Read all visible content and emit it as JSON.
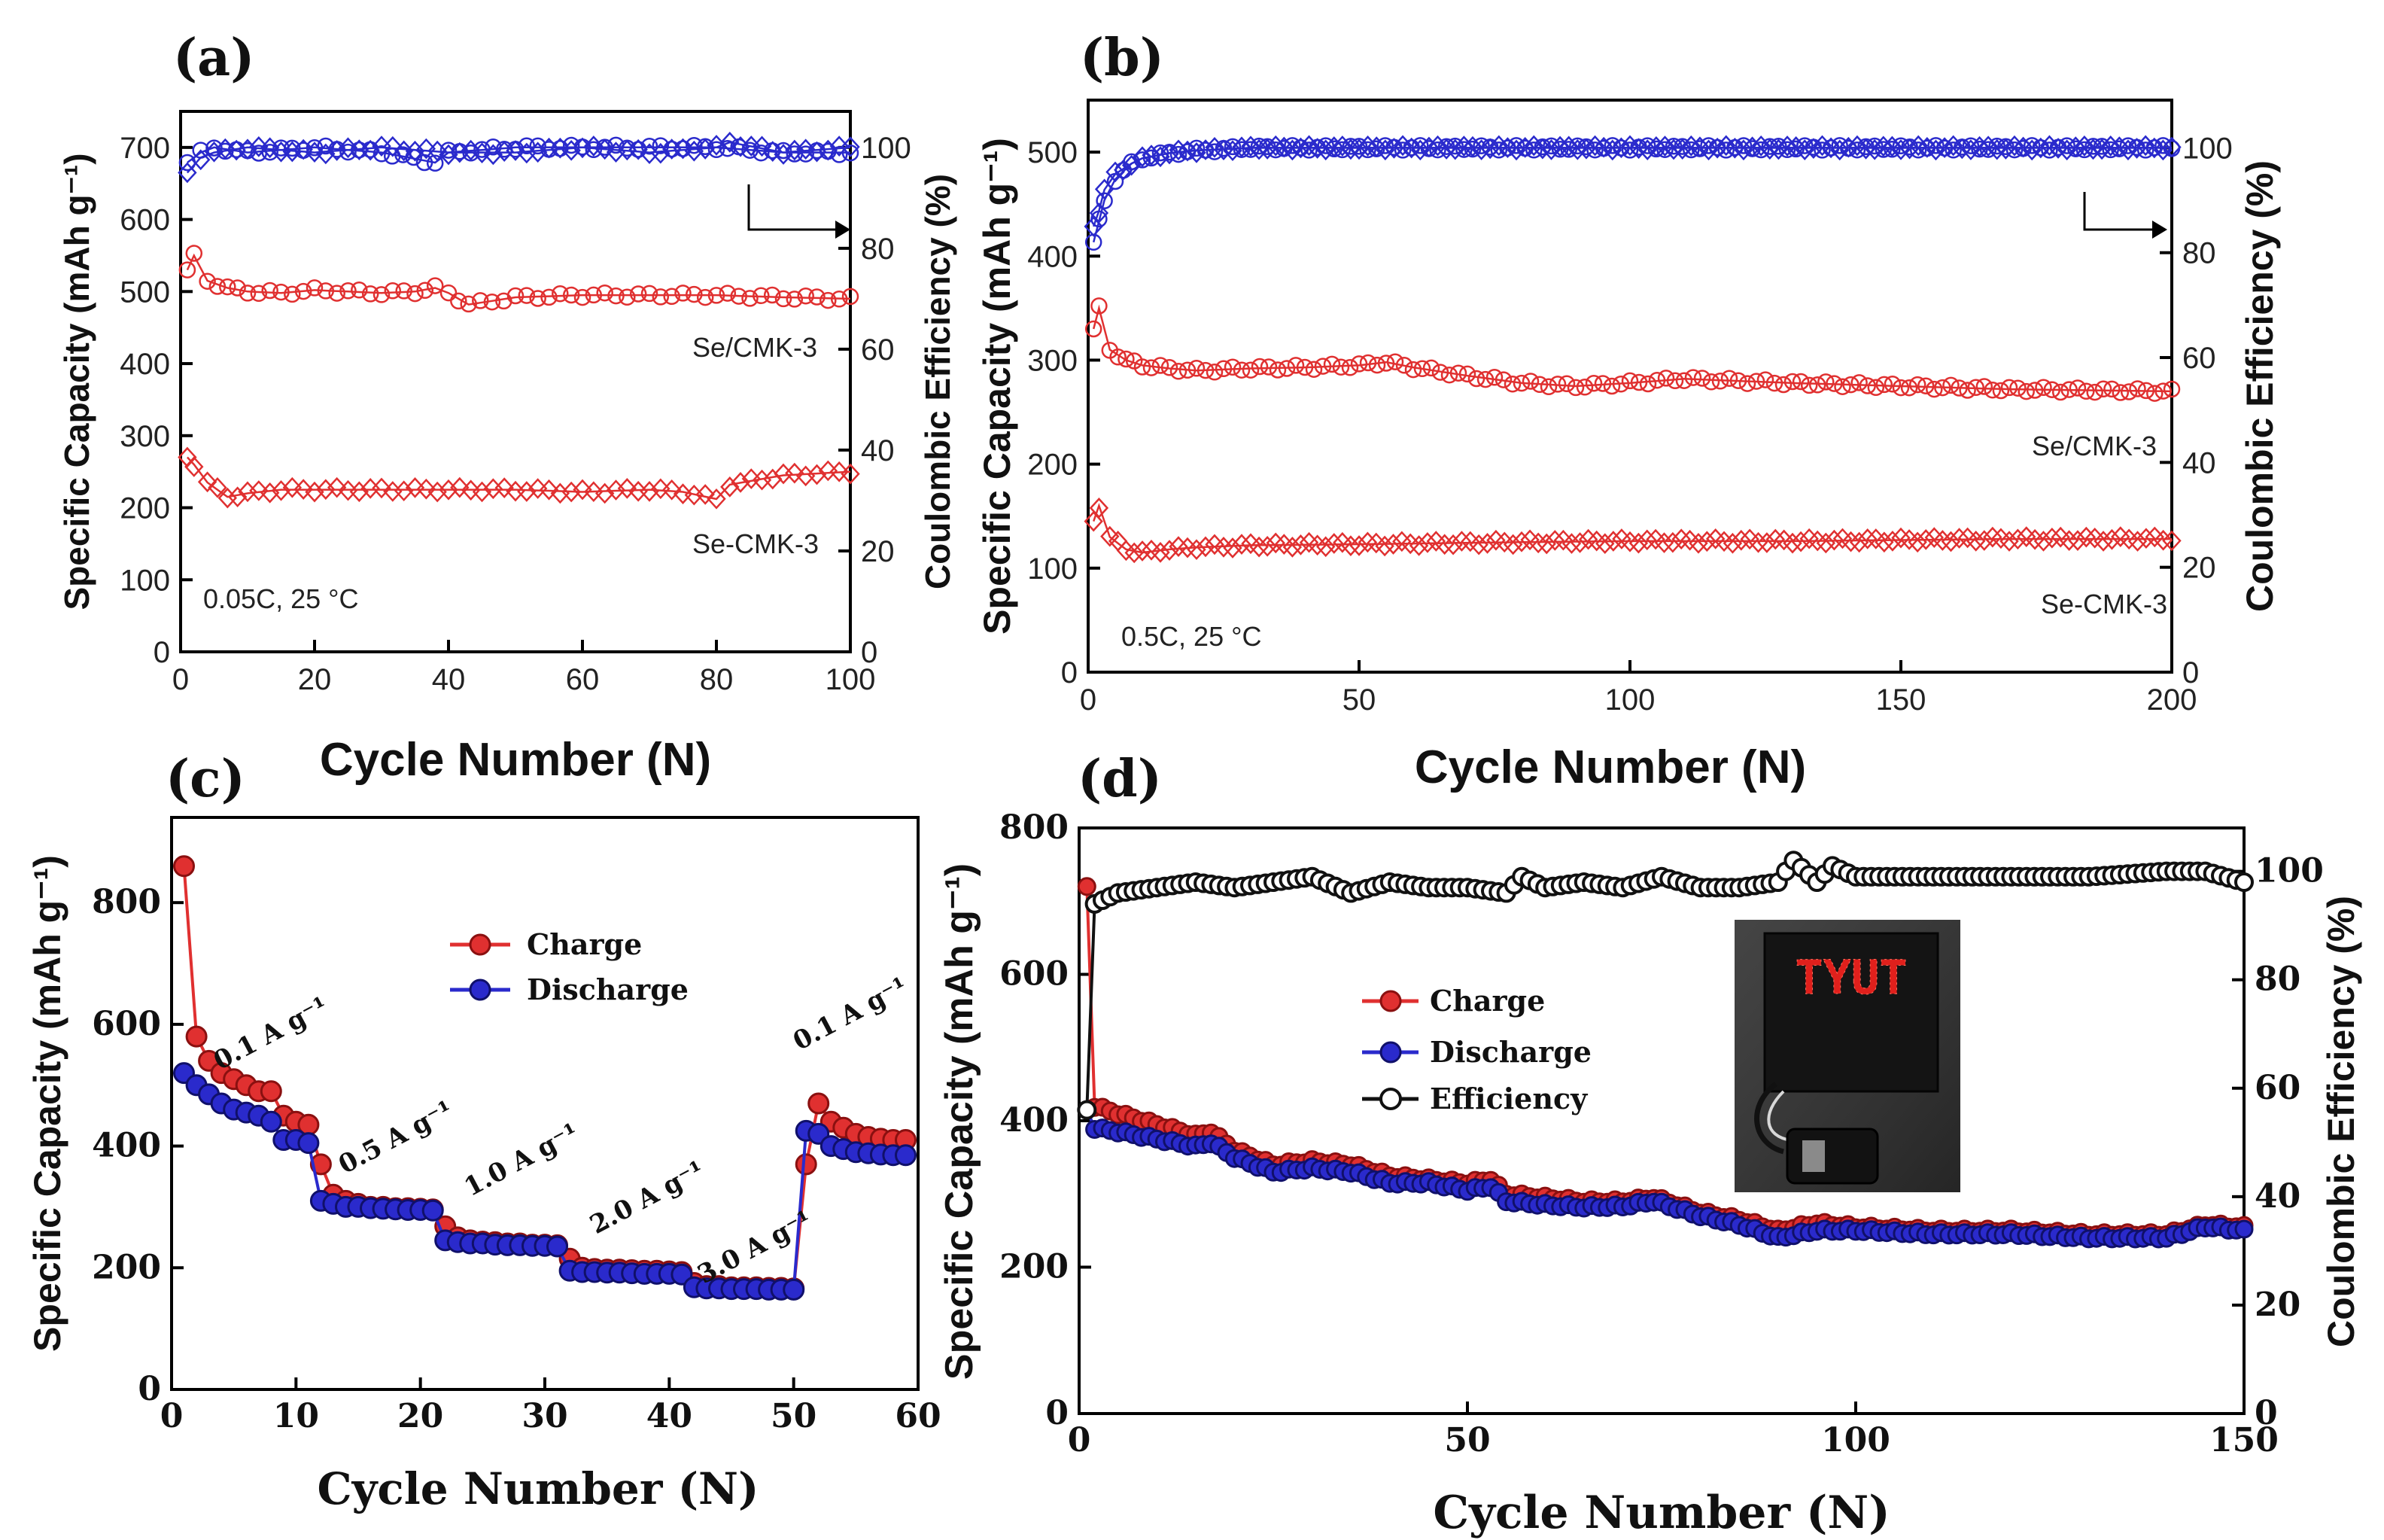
{
  "chart_data": [
    {
      "id": "a",
      "panel_label": "(a)",
      "type": "scatter",
      "xlabel": "Cycle Number (N)",
      "ylabel": "Specific Capacity (mAh g⁻¹)",
      "ylabel2": "Coulombic Efficiency (%)",
      "xlim": [
        0,
        100
      ],
      "ylim": [
        0,
        750
      ],
      "y2lim": [
        0,
        107.14
      ],
      "x_ticks": [
        0,
        20,
        40,
        60,
        80,
        100
      ],
      "y_ticks": [
        0,
        100,
        200,
        300,
        400,
        500,
        600,
        700
      ],
      "y2_ticks": [
        0,
        20,
        40,
        60,
        80,
        100
      ],
      "condition": "0.05C, 25 °C",
      "labels": [
        "Se/CMK-3",
        "Se-CMK-3"
      ],
      "series": [
        {
          "name": "Se/CMK-3 capacity",
          "axis": "left",
          "color": "#e03030",
          "x": [
            1,
            2,
            4,
            7,
            10,
            15,
            20,
            25,
            30,
            35,
            38,
            40,
            43,
            50,
            60,
            70,
            80,
            90,
            100
          ],
          "values": [
            530,
            550,
            515,
            505,
            500,
            498,
            502,
            500,
            498,
            500,
            505,
            498,
            482,
            492,
            495,
            495,
            495,
            492,
            490
          ]
        },
        {
          "name": "Se-CMK-3 capacity",
          "axis": "left",
          "color": "#e03030",
          "x": [
            1,
            2,
            4,
            7,
            10,
            15,
            20,
            30,
            40,
            50,
            60,
            70,
            75,
            80,
            82,
            90,
            100
          ],
          "values": [
            270,
            260,
            235,
            215,
            220,
            225,
            225,
            225,
            225,
            225,
            222,
            225,
            222,
            212,
            232,
            245,
            250
          ]
        },
        {
          "name": "Se/CMK-3 efficiency",
          "axis": "right",
          "color": "#2a2acc",
          "x": [
            1,
            3,
            5,
            10,
            20,
            30,
            38,
            40,
            50,
            60,
            70,
            80,
            90,
            100
          ],
          "values": [
            97,
            99,
            100,
            99,
            100,
            99,
            97,
            99,
            100,
            100,
            100,
            100,
            99,
            99
          ]
        },
        {
          "name": "Se-CMK-3 efficiency",
          "axis": "right",
          "color": "#2a2acc",
          "x": [
            1,
            3,
            5,
            10,
            20,
            30,
            40,
            50,
            60,
            70,
            80,
            82,
            90,
            100
          ],
          "values": [
            95,
            98,
            99,
            100,
            99,
            100,
            99,
            99,
            100,
            99,
            100,
            101,
            99,
            100
          ]
        }
      ]
    },
    {
      "id": "b",
      "panel_label": "(b)",
      "type": "scatter",
      "xlabel": "Cycle Number (N)",
      "ylabel": "Specific Capacity (mAh g⁻¹)",
      "ylabel2": "Coulombic Efficiency (%)",
      "xlim": [
        0,
        200
      ],
      "ylim": [
        0,
        550
      ],
      "y2lim": [
        0,
        109.1
      ],
      "x_ticks": [
        0,
        50,
        100,
        150,
        200
      ],
      "y_ticks": [
        0,
        100,
        200,
        300,
        400,
        500
      ],
      "y2_ticks": [
        0,
        20,
        40,
        60,
        80,
        100
      ],
      "condition": "0.5C, 25 °C",
      "labels": [
        "Se/CMK-3",
        "Se-CMK-3"
      ],
      "series": [
        {
          "name": "Se/CMK-3 capacity",
          "axis": "left",
          "color": "#e03030",
          "x": [
            1,
            2,
            4,
            7,
            10,
            15,
            20,
            30,
            40,
            50,
            55,
            60,
            70,
            80,
            90,
            100,
            110,
            120,
            130,
            150,
            170,
            200
          ],
          "values": [
            330,
            350,
            310,
            300,
            295,
            292,
            290,
            292,
            293,
            295,
            298,
            293,
            285,
            278,
            275,
            278,
            282,
            280,
            278,
            275,
            272,
            270
          ]
        },
        {
          "name": "Se-CMK-3 capacity",
          "axis": "left",
          "color": "#e03030",
          "x": [
            1,
            2,
            4,
            7,
            10,
            15,
            20,
            30,
            50,
            80,
            100,
            130,
            150,
            170,
            200
          ],
          "values": [
            145,
            160,
            130,
            118,
            115,
            118,
            120,
            122,
            123,
            125,
            126,
            126,
            127,
            128,
            128
          ]
        },
        {
          "name": "Se/CMK-3 efficiency",
          "axis": "right",
          "color": "#2a2acc",
          "x": [
            1,
            2,
            3,
            5,
            8,
            10,
            15,
            20,
            30,
            50,
            100,
            150,
            200
          ],
          "values": [
            82,
            86,
            90,
            94,
            97,
            98,
            99,
            99.5,
            100,
            100,
            100,
            100,
            100
          ]
        },
        {
          "name": "Se-CMK-3 efficiency",
          "axis": "right",
          "color": "#2a2acc",
          "x": [
            1,
            2,
            3,
            5,
            8,
            10,
            15,
            20,
            30,
            50,
            100,
            150,
            200
          ],
          "values": [
            85,
            88,
            92,
            95,
            97,
            98,
            99,
            99.5,
            100,
            100,
            100,
            100,
            100
          ]
        }
      ]
    },
    {
      "id": "c",
      "panel_label": "(c)",
      "type": "line",
      "xlabel": "Cycle Number (N)",
      "ylabel": "Specific Capacity (mAh g⁻¹)",
      "xlim": [
        0,
        60
      ],
      "ylim": [
        0,
        940
      ],
      "x_ticks": [
        0,
        10,
        20,
        30,
        40,
        50,
        60
      ],
      "y_ticks": [
        0,
        200,
        400,
        600,
        800
      ],
      "legend": [
        "Charge",
        "Discharge"
      ],
      "rate_labels": [
        "0.1 A g⁻¹",
        "0.5 A g⁻¹",
        "1.0 A g⁻¹",
        "2.0 A g⁻¹",
        "3.0 A g⁻¹",
        "0.1 A g⁻¹"
      ],
      "series": [
        {
          "name": "Charge",
          "color": "#e03030",
          "x": [
            1,
            2,
            3,
            4,
            5,
            6,
            7,
            8,
            9,
            10,
            11,
            12,
            13,
            14,
            15,
            16,
            17,
            18,
            19,
            20,
            21,
            22,
            23,
            24,
            25,
            26,
            27,
            28,
            29,
            30,
            31,
            32,
            33,
            34,
            35,
            36,
            37,
            38,
            39,
            40,
            41,
            42,
            43,
            44,
            45,
            46,
            47,
            48,
            49,
            50,
            51,
            52,
            53,
            54,
            55,
            56,
            57,
            58,
            59
          ],
          "values": [
            860,
            580,
            540,
            520,
            510,
            500,
            490,
            490,
            450,
            440,
            435,
            370,
            320,
            310,
            305,
            300,
            300,
            298,
            298,
            297,
            296,
            268,
            250,
            245,
            243,
            242,
            240,
            240,
            238,
            238,
            237,
            215,
            200,
            198,
            197,
            197,
            196,
            195,
            195,
            194,
            193,
            175,
            170,
            170,
            168,
            168,
            168,
            167,
            167,
            166,
            370,
            470,
            440,
            430,
            420,
            415,
            412,
            410,
            410
          ]
        },
        {
          "name": "Discharge",
          "color": "#2a2acc",
          "x": [
            1,
            2,
            3,
            4,
            5,
            6,
            7,
            8,
            9,
            10,
            11,
            12,
            13,
            14,
            15,
            16,
            17,
            18,
            19,
            20,
            21,
            22,
            23,
            24,
            25,
            26,
            27,
            28,
            29,
            30,
            31,
            32,
            33,
            34,
            35,
            36,
            37,
            38,
            39,
            40,
            41,
            42,
            43,
            44,
            45,
            46,
            47,
            48,
            49,
            50,
            51,
            52,
            53,
            54,
            55,
            56,
            57,
            58,
            59
          ],
          "values": [
            520,
            500,
            485,
            470,
            460,
            455,
            450,
            440,
            410,
            410,
            405,
            310,
            305,
            300,
            300,
            298,
            297,
            296,
            295,
            295,
            294,
            245,
            242,
            240,
            240,
            238,
            237,
            237,
            236,
            236,
            235,
            195,
            193,
            193,
            192,
            192,
            191,
            190,
            190,
            190,
            189,
            168,
            166,
            166,
            165,
            165,
            165,
            164,
            164,
            164,
            425,
            420,
            400,
            395,
            390,
            388,
            386,
            385,
            385
          ]
        }
      ]
    },
    {
      "id": "d",
      "panel_label": "(d)",
      "type": "line",
      "xlabel": "Cycle Number (N)",
      "ylabel": "Specific Capacity (mAh g⁻¹)",
      "ylabel2": "Coulombic Efficiency (%)",
      "xlim": [
        0,
        150
      ],
      "ylim": [
        0,
        800
      ],
      "y2lim": [
        0,
        108
      ],
      "x_ticks": [
        0,
        50,
        100,
        150
      ],
      "y_ticks": [
        0,
        200,
        400,
        600,
        800
      ],
      "y2_ticks": [
        0,
        20,
        40,
        60,
        80,
        100
      ],
      "legend": [
        "Charge",
        "Discharge",
        "Efficiency"
      ],
      "inset_text": "TYUT",
      "series": [
        {
          "name": "Charge",
          "axis": "left",
          "color": "#e03030",
          "x": [
            1,
            2,
            5,
            10,
            15,
            17,
            20,
            25,
            30,
            35,
            40,
            45,
            50,
            53,
            55,
            60,
            65,
            70,
            74,
            80,
            85,
            90,
            95,
            100,
            110,
            120,
            130,
            140,
            145,
            150
          ],
          "values": [
            720,
            420,
            410,
            395,
            380,
            385,
            360,
            340,
            345,
            340,
            325,
            320,
            315,
            320,
            300,
            295,
            290,
            290,
            295,
            275,
            265,
            250,
            260,
            255,
            250,
            250,
            245,
            245,
            258,
            255
          ]
        },
        {
          "name": "Discharge",
          "axis": "left",
          "color": "#2a2acc",
          "x": [
            1,
            2,
            5,
            10,
            15,
            17,
            20,
            25,
            30,
            35,
            40,
            45,
            50,
            53,
            55,
            60,
            65,
            70,
            74,
            80,
            85,
            90,
            95,
            100,
            110,
            120,
            130,
            140,
            145,
            150
          ],
          "values": [
            415,
            390,
            385,
            375,
            365,
            370,
            350,
            330,
            335,
            330,
            315,
            315,
            305,
            310,
            290,
            285,
            282,
            283,
            290,
            270,
            258,
            240,
            250,
            250,
            245,
            245,
            240,
            240,
            255,
            250
          ]
        },
        {
          "name": "Efficiency",
          "axis": "right",
          "color": "#111111",
          "x": [
            1,
            2,
            5,
            10,
            15,
            20,
            25,
            30,
            35,
            40,
            45,
            50,
            55,
            57,
            60,
            65,
            70,
            75,
            80,
            85,
            90,
            92,
            95,
            97,
            100,
            110,
            120,
            130,
            140,
            145,
            150
          ],
          "values": [
            56,
            94,
            96,
            97,
            98,
            97,
            98,
            99,
            96,
            98,
            97,
            97,
            96,
            99,
            97,
            98,
            97,
            99,
            97,
            97,
            98,
            102,
            98,
            101,
            99,
            99,
            99,
            99,
            100,
            100,
            98
          ]
        }
      ]
    }
  ]
}
